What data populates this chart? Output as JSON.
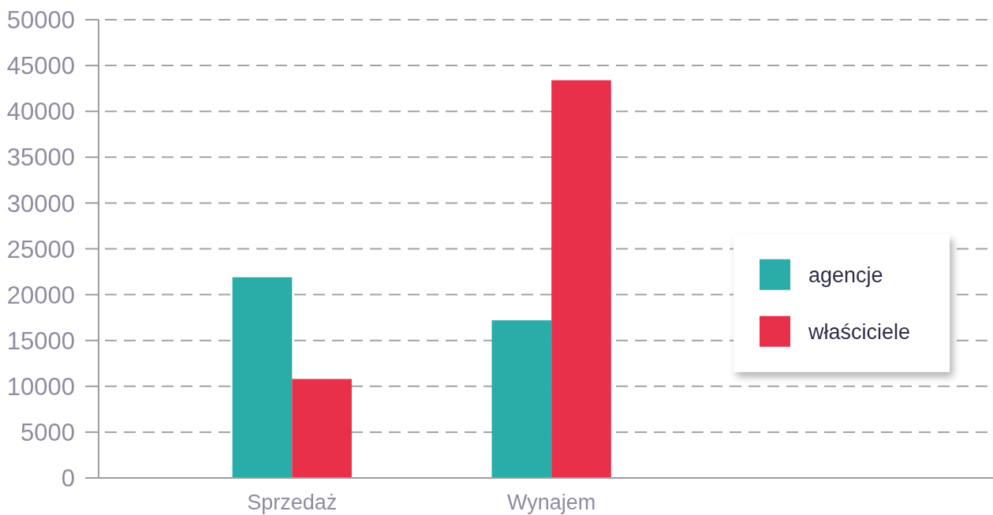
{
  "chart_data": {
    "type": "bar",
    "categories": [
      "Sprzedaż",
      "Wynajem"
    ],
    "series": [
      {
        "name": "agencje",
        "color": "#2aada8",
        "values": [
          21900,
          17200
        ]
      },
      {
        "name": "właściciele",
        "color": "#e8304a",
        "values": [
          10800,
          43400
        ]
      }
    ],
    "ylim": [
      0,
      50000
    ],
    "yticks": [
      0,
      5000,
      10000,
      15000,
      20000,
      25000,
      30000,
      35000,
      40000,
      45000,
      50000
    ],
    "grid": "y",
    "legend": "right"
  }
}
